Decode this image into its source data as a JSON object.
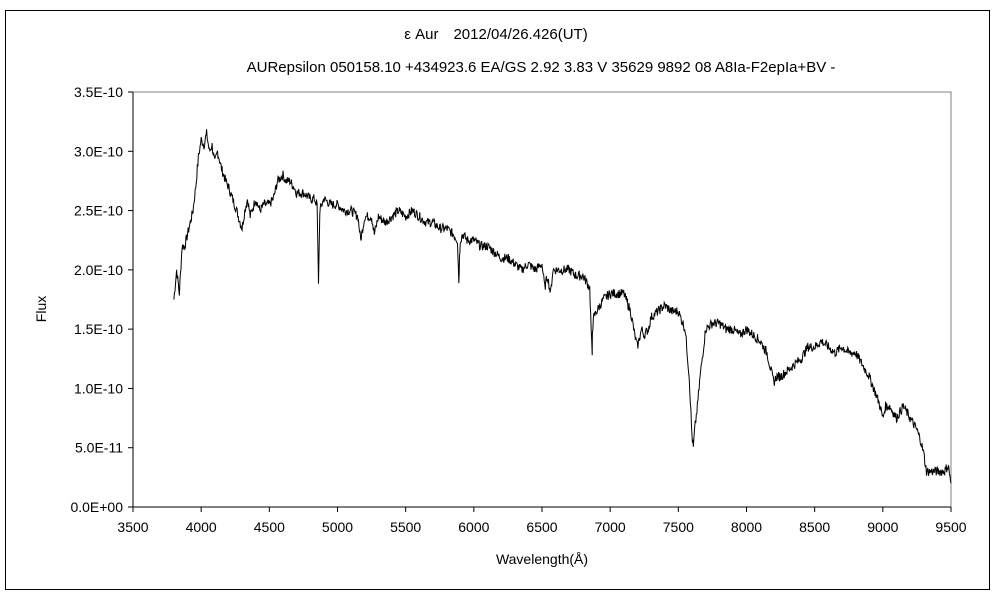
{
  "chart_data": {
    "type": "line",
    "title": "ε Aur　2012/04/26.426(UT)",
    "subtitle": "AURepsilon 050158.10 +434923.6 EA/GS 2.92 3.83 V 35629 9892 08 A8Ia-F2epIa+BV -",
    "xlabel": "Wavelength(Å)",
    "ylabel": "Flux",
    "xlim": [
      3500,
      9500
    ],
    "ylim": [
      0,
      3.5e-10
    ],
    "x_ticks": [
      3500,
      4000,
      4500,
      5000,
      5500,
      6000,
      6500,
      7000,
      7500,
      8000,
      8500,
      9000,
      9500
    ],
    "x_tick_labels": [
      "3500",
      "4000",
      "4500",
      "5000",
      "5500",
      "6000",
      "6500",
      "7000",
      "7500",
      "8000",
      "8500",
      "9000",
      "9500"
    ],
    "y_ticks": [
      0,
      5e-11,
      1e-10,
      1.5e-10,
      2e-10,
      2.5e-10,
      3e-10,
      3.5e-10
    ],
    "y_tick_labels": [
      "0.0E+00",
      "5.0E-11",
      "1.0E-10",
      "1.5E-10",
      "2.0E-10",
      "2.5E-10",
      "3.0E-10",
      "3.5E-10"
    ],
    "grid": false,
    "series": [
      {
        "color": "#000000",
        "x": [
          3800,
          3820,
          3840,
          3860,
          3880,
          3900,
          3920,
          3940,
          3960,
          3980,
          4000,
          4020,
          4040,
          4060,
          4080,
          4100,
          4120,
          4150,
          4180,
          4200,
          4230,
          4260,
          4300,
          4320,
          4340,
          4360,
          4400,
          4430,
          4460,
          4500,
          4530,
          4560,
          4600,
          4620,
          4650,
          4680,
          4700,
          4750,
          4800,
          4830,
          4850,
          4861,
          4870,
          4900,
          4950,
          5000,
          5050,
          5100,
          5150,
          5170,
          5200,
          5250,
          5270,
          5300,
          5350,
          5400,
          5450,
          5500,
          5550,
          5600,
          5650,
          5700,
          5750,
          5800,
          5850,
          5880,
          5890,
          5895,
          5900,
          5920,
          5950,
          6000,
          6050,
          6100,
          6150,
          6200,
          6250,
          6300,
          6350,
          6400,
          6450,
          6500,
          6520,
          6540,
          6563,
          6580,
          6600,
          6650,
          6700,
          6750,
          6800,
          6850,
          6868,
          6870,
          6880,
          6900,
          6950,
          7000,
          7050,
          7100,
          7150,
          7180,
          7200,
          7230,
          7250,
          7280,
          7300,
          7350,
          7400,
          7450,
          7500,
          7550,
          7580,
          7600,
          7610,
          7620,
          7640,
          7660,
          7700,
          7750,
          7800,
          7850,
          7900,
          7950,
          8000,
          8050,
          8100,
          8150,
          8180,
          8200,
          8220,
          8250,
          8300,
          8350,
          8400,
          8450,
          8500,
          8550,
          8600,
          8650,
          8700,
          8750,
          8800,
          8850,
          8900,
          8950,
          8980,
          9000,
          9020,
          9050,
          9100,
          9150,
          9200,
          9250,
          9280,
          9300,
          9320,
          9350,
          9400,
          9450,
          9480,
          9500
        ],
        "values": [
          1.75e-10,
          2e-10,
          1.8e-10,
          2.2e-10,
          2.2e-10,
          2.3e-10,
          2.4e-10,
          2.5e-10,
          2.7e-10,
          2.95e-10,
          3.1e-10,
          3.05e-10,
          3.15e-10,
          3e-10,
          3.05e-10,
          2.9e-10,
          3e-10,
          2.85e-10,
          2.75e-10,
          2.7e-10,
          2.6e-10,
          2.5e-10,
          2.35e-10,
          2.5e-10,
          2.6e-10,
          2.45e-10,
          2.6e-10,
          2.5e-10,
          2.55e-10,
          2.55e-10,
          2.6e-10,
          2.75e-10,
          2.8e-10,
          2.75e-10,
          2.75e-10,
          2.7e-10,
          2.65e-10,
          2.65e-10,
          2.6e-10,
          2.6e-10,
          2.55e-10,
          1.9e-10,
          2.5e-10,
          2.6e-10,
          2.55e-10,
          2.55e-10,
          2.5e-10,
          2.5e-10,
          2.45e-10,
          2.25e-10,
          2.45e-10,
          2.45e-10,
          2.3e-10,
          2.45e-10,
          2.4e-10,
          2.45e-10,
          2.5e-10,
          2.45e-10,
          2.5e-10,
          2.45e-10,
          2.4e-10,
          2.4e-10,
          2.35e-10,
          2.35e-10,
          2.3e-10,
          2.25e-10,
          1.9e-10,
          2.1e-10,
          2.25e-10,
          2.3e-10,
          2.25e-10,
          2.25e-10,
          2.2e-10,
          2.2e-10,
          2.15e-10,
          2.1e-10,
          2.1e-10,
          2.05e-10,
          2e-10,
          2.05e-10,
          2e-10,
          2.05e-10,
          1.85e-10,
          1.95e-10,
          1.8e-10,
          2e-10,
          2e-10,
          2e-10,
          2e-10,
          1.95e-10,
          1.95e-10,
          1.85e-10,
          1.25e-10,
          1.5e-10,
          1.6e-10,
          1.65e-10,
          1.75e-10,
          1.8e-10,
          1.8e-10,
          1.8e-10,
          1.65e-10,
          1.45e-10,
          1.35e-10,
          1.5e-10,
          1.45e-10,
          1.5e-10,
          1.6e-10,
          1.65e-10,
          1.7e-10,
          1.65e-10,
          1.65e-10,
          1.5e-10,
          1.1e-10,
          6e-11,
          5e-11,
          6.5e-11,
          8.5e-11,
          1.1e-10,
          1.5e-10,
          1.55e-10,
          1.55e-10,
          1.5e-10,
          1.5e-10,
          1.45e-10,
          1.5e-10,
          1.45e-10,
          1.4e-10,
          1.3e-10,
          1.15e-10,
          1.05e-10,
          1.1e-10,
          1.1e-10,
          1.15e-10,
          1.2e-10,
          1.25e-10,
          1.35e-10,
          1.35e-10,
          1.4e-10,
          1.35e-10,
          1.3e-10,
          1.35e-10,
          1.3e-10,
          1.3e-10,
          1.2e-10,
          1.1e-10,
          9.5e-11,
          8.5e-11,
          7.5e-11,
          8.5e-11,
          8.5e-11,
          7.5e-11,
          8.5e-11,
          7.5e-11,
          6.5e-11,
          5.5e-11,
          4.5e-11,
          3e-11,
          3e-11,
          3e-11,
          3e-11,
          3.5e-11,
          2e-11
        ]
      }
    ]
  }
}
